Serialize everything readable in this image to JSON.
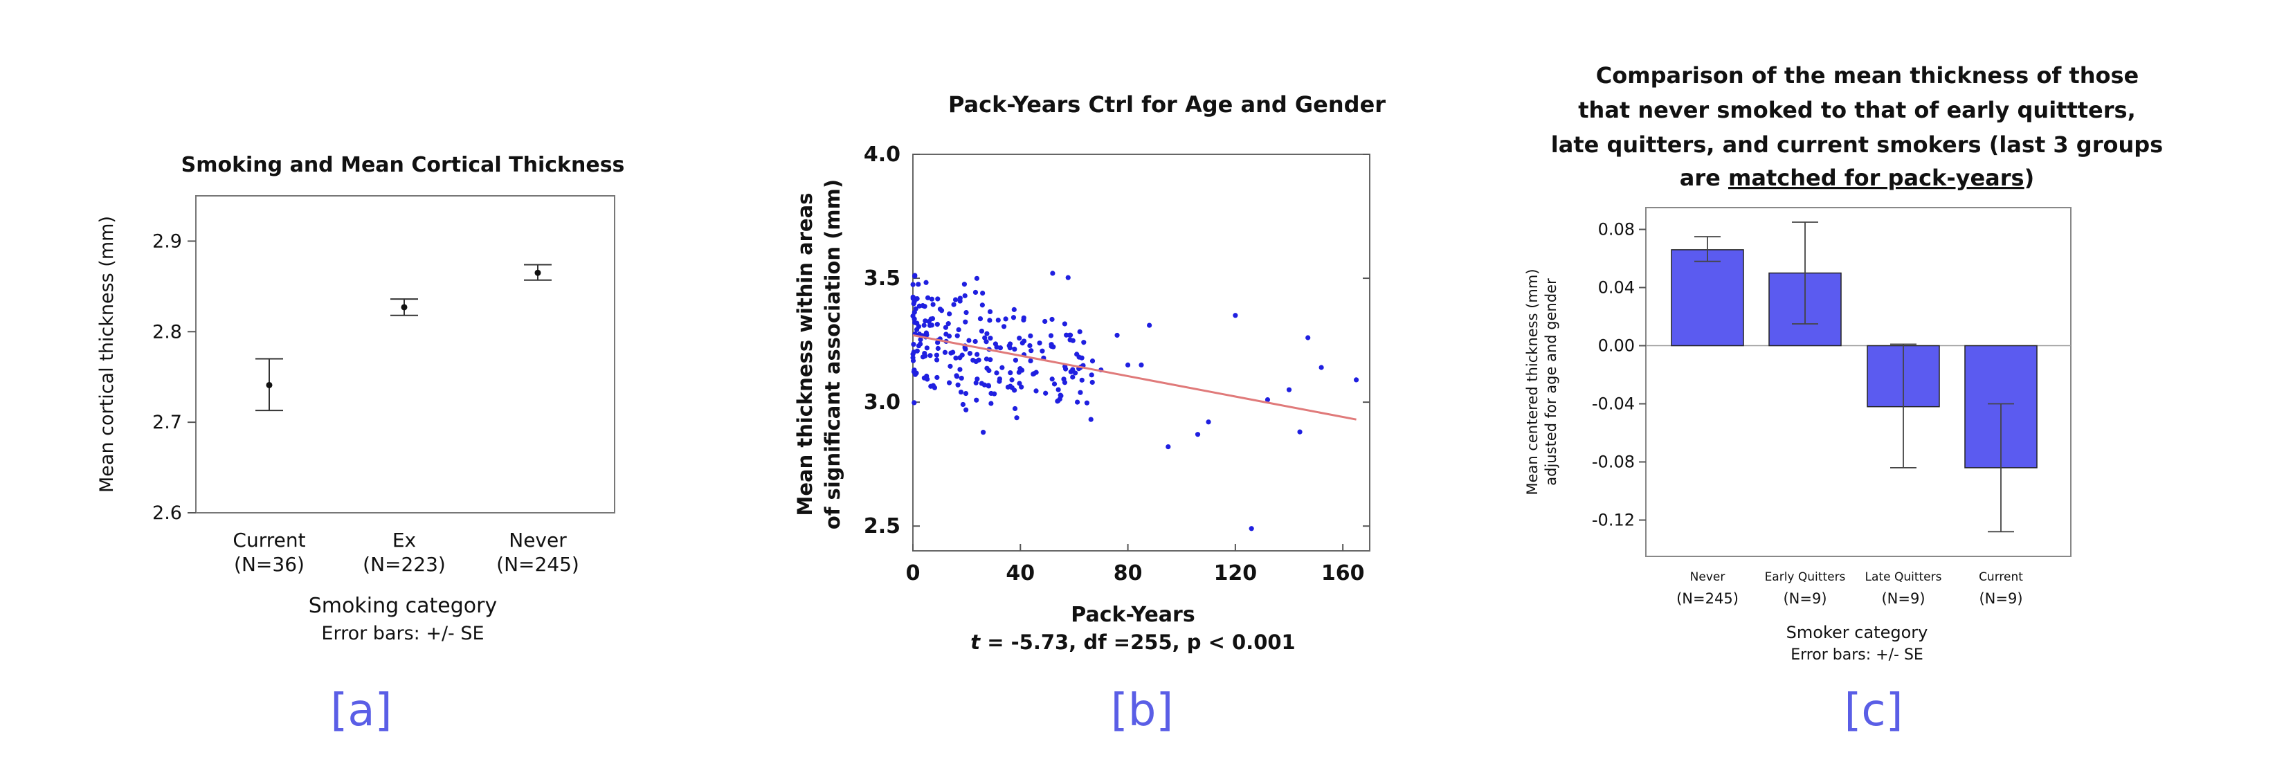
{
  "chart_data": [
    {
      "type": "scatter",
      "panel_label": "[a]",
      "title": "Smoking and Mean Cortical Thickness",
      "ylabel": "Mean cortical thickness (mm)",
      "xlabel": "Smoking category",
      "note": "Error bars: +/- SE",
      "ylim": [
        2.6,
        2.95
      ],
      "yticks": [
        "2.6",
        "2.7",
        "2.8",
        "2.9"
      ],
      "grid": false,
      "categories": [
        {
          "name": "Current",
          "n": "(N=36)",
          "mean": 2.741,
          "lo": 2.713,
          "hi": 2.77
        },
        {
          "name": "Ex",
          "n": "(N=223)",
          "mean": 2.827,
          "lo": 2.818,
          "hi": 2.836
        },
        {
          "name": "Never",
          "n": "(N=245)",
          "mean": 2.865,
          "lo": 2.857,
          "hi": 2.874
        }
      ]
    },
    {
      "type": "scatter",
      "panel_label": "[b]",
      "title": "Pack-Years Ctrl for Age and Gender",
      "ylabel_line1": "Mean thickness within areas",
      "ylabel_line2": "of significant association (mm)",
      "xlabel": "Pack-Years",
      "stats_t": "t",
      "stats_rest": " = -5.73, df =255, p < 0.001",
      "xlim": [
        0,
        170
      ],
      "ylim": [
        2.4,
        4.0
      ],
      "xticks": [
        "0",
        "40",
        "80",
        "120",
        "160"
      ],
      "yticks": [
        "2.5",
        "3.0",
        "3.5",
        "4.0"
      ],
      "point_color": "#1f1fe0",
      "fit_color": "#e07a7a",
      "fit_line": {
        "x": [
          0,
          165
        ],
        "y": [
          3.27,
          2.93
        ]
      },
      "outliers": {
        "x": [
          52,
          70,
          76,
          80,
          85,
          88,
          95,
          106,
          110,
          120,
          126,
          132,
          140,
          144,
          147,
          152,
          165
        ],
        "y": [
          3.52,
          3.13,
          3.27,
          3.15,
          3.15,
          3.31,
          2.82,
          2.87,
          2.92,
          3.35,
          2.49,
          3.01,
          3.05,
          2.88,
          3.26,
          3.14,
          3.09
        ]
      }
    },
    {
      "type": "bar",
      "panel_label": "[c]",
      "title_lines": [
        "Comparison of the mean thickness of those",
        "that never smoked to that of early quittters,",
        "late quitters, and current smokers (last 3 groups"
      ],
      "title_line4_pre": "are ",
      "title_line4_underlined": "matched for pack-years",
      "title_line4_post": ")",
      "ylabel_line1": "Mean centered thickness (mm)",
      "ylabel_line2": "adjusted for age and gender",
      "xlabel": "Smoker category",
      "note": "Error bars: +/- SE",
      "ylim": [
        -0.145,
        0.095
      ],
      "yticks": [
        "0.08",
        "0.04",
        "0.00",
        "-0.04",
        "-0.08",
        "-0.12"
      ],
      "bar_color": "#5b5bf0",
      "categories": [
        {
          "name": "Never",
          "n": "(N=245)",
          "value": 0.066,
          "lo": 0.058,
          "hi": 0.075
        },
        {
          "name": "Early Quitters",
          "n": "(N=9)",
          "value": 0.05,
          "lo": 0.015,
          "hi": 0.085
        },
        {
          "name": "Late Quitters",
          "n": "(N=9)",
          "value": -0.042,
          "lo": -0.084,
          "hi": 0.001
        },
        {
          "name": "Current",
          "n": "(N=9)",
          "value": -0.084,
          "lo": -0.128,
          "hi": -0.04
        }
      ]
    }
  ]
}
